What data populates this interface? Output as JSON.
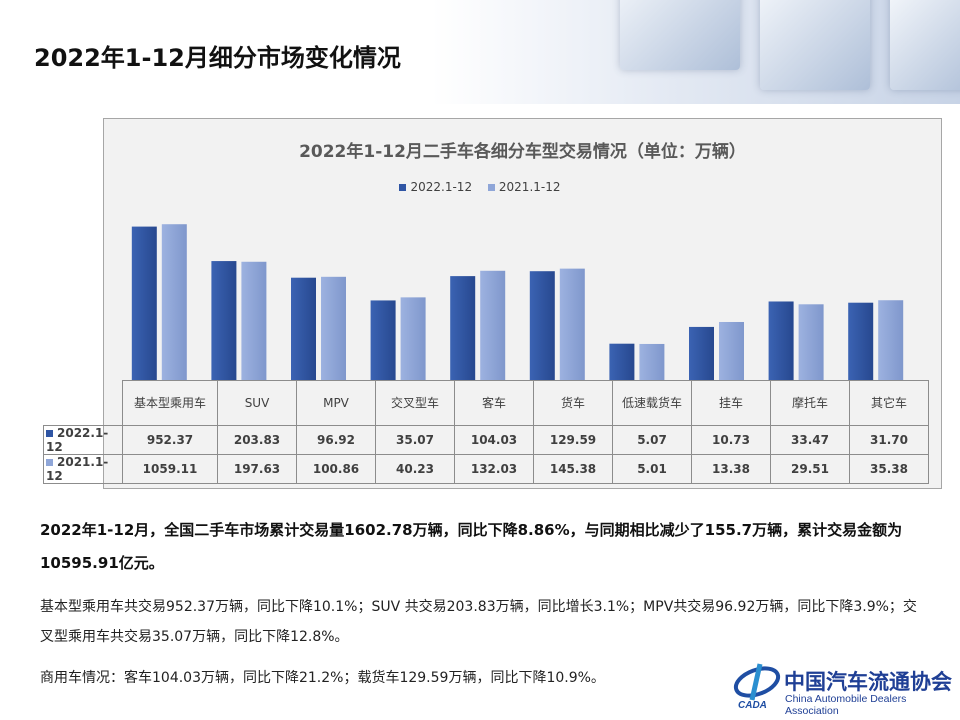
{
  "page": {
    "title": "2022年1-12月细分市场变化情况"
  },
  "chart_data": {
    "type": "bar",
    "title": "2022年1-12月二手车各细分车型交易情况（单位：万辆）",
    "y_scale": "log",
    "grid": false,
    "legend": "top",
    "categories": [
      "基本型乘用车",
      "SUV",
      "MPV",
      "交叉型车",
      "客车",
      "货车",
      "低速载货车",
      "挂车",
      "摩托车",
      "其它车"
    ],
    "series": [
      {
        "name": "2022.1-12",
        "color": "#2f55a4",
        "values": [
          "952.37",
          "203.83",
          "96.92",
          "35.07",
          "104.03",
          "129.59",
          "5.07",
          "10.73",
          "33.47",
          "31.70"
        ]
      },
      {
        "name": "2021.1-12",
        "color": "#8fa6d8",
        "values": [
          "1059.11",
          "197.63",
          "100.86",
          "40.23",
          "132.03",
          "145.38",
          "5.01",
          "13.38",
          "29.51",
          "35.38"
        ]
      }
    ]
  },
  "text": {
    "summary": "2022年1-12月，全国二手车市场累计交易量1602.78万辆，同比下降8.86%，与同期相比减少了155.7万辆，累计交易金额为10595.91亿元。",
    "passenger": "基本型乘用车共交易952.37万辆，同比下降10.1%；SUV 共交易203.83万辆，同比增长3.1%；MPV共交易96.92万辆，同比下降3.9%；交叉型乘用车共交易35.07万辆，同比下降12.8%。",
    "commercial": "商用车情况：客车104.03万辆，同比下降21.2%；载货车129.59万辆，同比下降10.9%。"
  },
  "logo": {
    "cn": "中国汽车流通协会",
    "en": "China Automobile Dealers Association",
    "mark": "CADA"
  }
}
